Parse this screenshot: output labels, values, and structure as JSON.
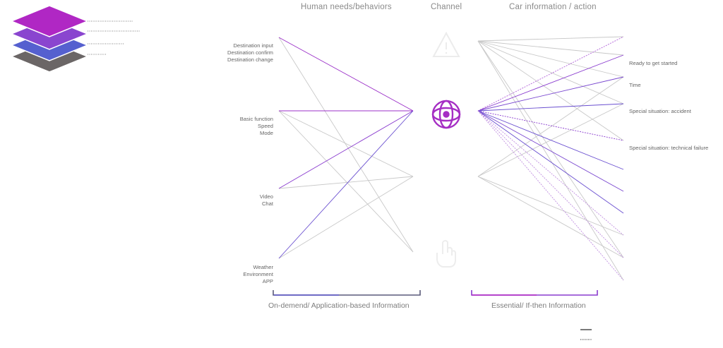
{
  "headers": {
    "left": "Human needs/behaviors",
    "middle": "Channel",
    "right": "Car information / action"
  },
  "input_groups": [
    {
      "lines": [
        "Destination input",
        "Destination confirm",
        "Destination change"
      ]
    },
    {
      "lines": [
        "Basic function",
        "Speed",
        "Mode"
      ]
    },
    {
      "lines": [
        "Video",
        "Chat"
      ]
    },
    {
      "lines": [
        "Weather",
        "Environment",
        "APP"
      ]
    }
  ],
  "outputs": [
    "Ready to get started",
    "Time",
    "Special situation: accident",
    "Special situation: technical failure"
  ],
  "footers": {
    "left": "On-demend/ Application-based Information",
    "right": "Essential/ If-then Information"
  },
  "channels": [
    "warning-triangle-icon",
    "eye-icon",
    "touch-hand-icon"
  ],
  "colors": {
    "purple": "#9b30c8",
    "blue_violet": "#6a4fd0",
    "grey_line": "#c4c4c4",
    "layer_top": "#b027c4",
    "layer_2": "#8a45cf",
    "layer_3": "#5560cf",
    "layer_4": "#6b6666"
  }
}
